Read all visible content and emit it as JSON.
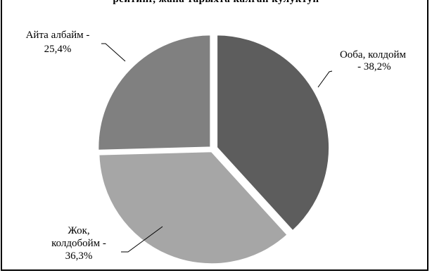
{
  "header_fragment": "рейтинг, жана тарыхта калган кулуктун",
  "colors": {
    "slice_1": "#5d5d5d",
    "slice_2": "#a6a6a6",
    "slice_3": "#808080",
    "edge": "#ffffff"
  },
  "chart_data": {
    "type": "pie",
    "title": "",
    "slices": [
      {
        "label_lines": [
          "Ооба, колдойм",
          " - 38,2%"
        ],
        "value": 38.2
      },
      {
        "label_lines": [
          "Жок,",
          "колдобойм -",
          "36,3%"
        ],
        "value": 36.3
      },
      {
        "label_lines": [
          "Айта албайм -",
          "25,4%"
        ],
        "value": 25.4
      }
    ],
    "start_angle_deg": 0,
    "direction": "clockwise",
    "exploded": true,
    "legend": "none"
  }
}
